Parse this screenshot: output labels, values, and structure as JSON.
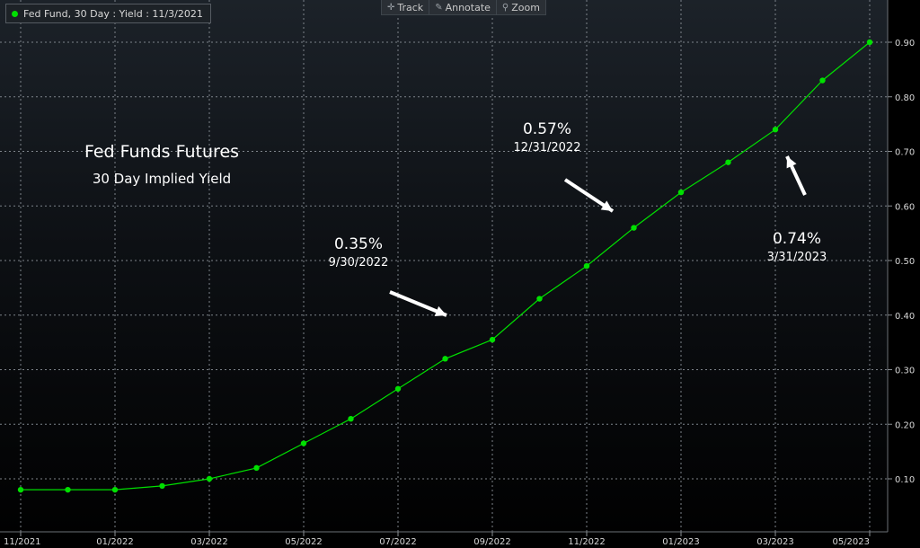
{
  "legend": {
    "label": "Fed Fund, 30 Day : Yield : 11/3/2021",
    "color": "#00e000"
  },
  "toolbar": {
    "items": [
      {
        "icon": "crosshair-icon",
        "label": "Track"
      },
      {
        "icon": "pencil-icon",
        "label": "Annotate"
      },
      {
        "icon": "magnifier-icon",
        "label": "Zoom"
      }
    ]
  },
  "annotations": {
    "title": "Fed Funds Futures",
    "subtitle": "30 Day Implied Yield",
    "callouts": [
      {
        "value": "0.35%",
        "date": "9/30/2022"
      },
      {
        "value": "0.57%",
        "date": "12/31/2022"
      },
      {
        "value": "0.74%",
        "date": "3/31/2023"
      }
    ]
  },
  "chart_data": {
    "type": "line",
    "x_ticks": [
      "11/2021",
      "01/2022",
      "03/2022",
      "05/2022",
      "07/2022",
      "09/2022",
      "11/2022",
      "01/2023",
      "03/2023",
      "05/2023"
    ],
    "y_ticks": [
      "0.10",
      "0.20",
      "0.30",
      "0.40",
      "0.50",
      "0.60",
      "0.70",
      "0.80",
      "0.90"
    ],
    "ylim": [
      0,
      1.0
    ],
    "grid": true,
    "series": [
      {
        "name": "Fed Fund, 30 Day : Yield : 11/3/2021",
        "color": "#00e000",
        "x": [
          "2021-11",
          "2021-12",
          "2022-01",
          "2022-02",
          "2022-03",
          "2022-04",
          "2022-05",
          "2022-06",
          "2022-07",
          "2022-08",
          "2022-09",
          "2022-10",
          "2022-11",
          "2022-12",
          "2023-01",
          "2023-02",
          "2023-03",
          "2023-04",
          "2023-05"
        ],
        "values": [
          0.08,
          0.08,
          0.08,
          0.087,
          0.1,
          0.12,
          0.165,
          0.21,
          0.265,
          0.32,
          0.355,
          0.43,
          0.49,
          0.56,
          0.625,
          0.68,
          0.74,
          0.83,
          0.9
        ]
      }
    ]
  }
}
